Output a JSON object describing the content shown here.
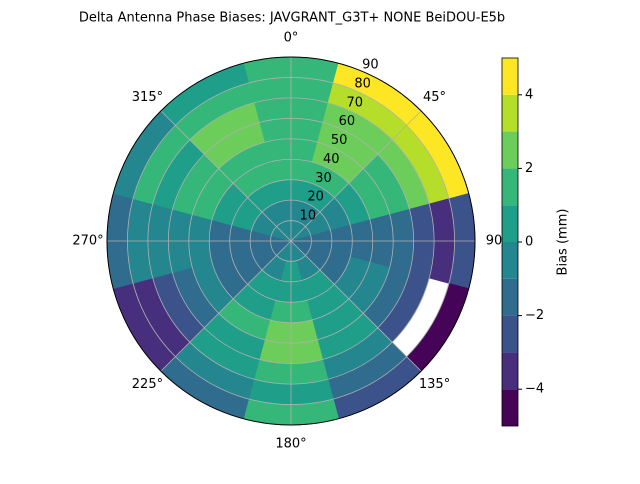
{
  "chart_data": {
    "type": "polar_contour",
    "title": "Delta Antenna Phase Biases: JAVGRANT_G3T+   NONE BeiDOU-E5b",
    "theta": [
      0,
      30,
      60,
      90,
      120,
      150,
      180,
      210,
      240,
      270,
      300,
      330
    ],
    "r": [
      5,
      15,
      25,
      35,
      45,
      55,
      65,
      75,
      85
    ],
    "z": [
      [
        -0.5,
        -0.5,
        0.5,
        1.5,
        1.5,
        1.5,
        1.5,
        1.5,
        1.5
      ],
      [
        -0.5,
        -0.5,
        0.5,
        1.5,
        2.5,
        2.5,
        2.5,
        3.5,
        4.5
      ],
      [
        -0.5,
        -0.5,
        -0.5,
        0.5,
        1.5,
        1.5,
        2.5,
        3.5,
        4.5
      ],
      [
        -1.5,
        -1.5,
        -1.5,
        -1.5,
        -1.5,
        -1.5,
        -2.5,
        -3.5,
        -2.5
      ],
      [
        -1.5,
        -1.5,
        -1.5,
        -0.5,
        -0.5,
        -1.5,
        -2.5,
        null,
        -4.5
      ],
      [
        -0.5,
        -0.5,
        0.5,
        0.5,
        0.5,
        0.5,
        -0.5,
        -1.5,
        -2.5
      ],
      [
        -0.5,
        0.5,
        0.5,
        1.5,
        2.5,
        2.5,
        1.5,
        0.5,
        1.5
      ],
      [
        -0.5,
        -0.5,
        0.5,
        0.5,
        1.5,
        0.5,
        0.5,
        -0.5,
        -1.5
      ],
      [
        -1.5,
        -1.5,
        -1.5,
        -1.5,
        -0.5,
        -1.5,
        -2.5,
        -3.5,
        -3.5
      ],
      [
        -1.5,
        -1.5,
        -1.5,
        -1.5,
        -0.5,
        -0.5,
        -0.5,
        -0.5,
        -1.5
      ],
      [
        -0.5,
        -0.5,
        0.5,
        0.5,
        1.5,
        1.5,
        0.5,
        1.5,
        -0.5
      ],
      [
        -0.5,
        -0.5,
        0.5,
        1.5,
        1.5,
        2.5,
        2.5,
        1.5,
        0.5
      ]
    ],
    "rlim": [
      0,
      90
    ],
    "rticks": [
      10,
      20,
      30,
      40,
      50,
      60,
      70,
      80,
      90
    ],
    "thetaticks": [
      {
        "value": 0,
        "label": "0°"
      },
      {
        "value": 45,
        "label": "45°"
      },
      {
        "value": 90,
        "label": "90"
      },
      {
        "value": 135,
        "label": "135°"
      },
      {
        "value": 180,
        "label": "180°"
      },
      {
        "value": 225,
        "label": "225°"
      },
      {
        "value": 270,
        "label": "270°"
      },
      {
        "value": 315,
        "label": "315°"
      }
    ],
    "grid": true,
    "levels": [
      -5,
      -4,
      -3,
      -2,
      -1,
      0,
      1,
      2,
      3,
      4,
      5
    ],
    "colors": [
      "#450457",
      "#472f7d",
      "#3b528b",
      "#2f6c8e",
      "#24868e",
      "#1f9e89",
      "#35b779",
      "#6ccd5a",
      "#b5de2b",
      "#fde725"
    ],
    "colorbar_label": "Bias (mm)",
    "colorbar_ticks": [
      {
        "value": -4,
        "label": "−4"
      },
      {
        "value": -2,
        "label": "−2"
      },
      {
        "value": 0,
        "label": "0"
      },
      {
        "value": 2,
        "label": "2"
      },
      {
        "value": 4,
        "label": "4"
      }
    ]
  }
}
